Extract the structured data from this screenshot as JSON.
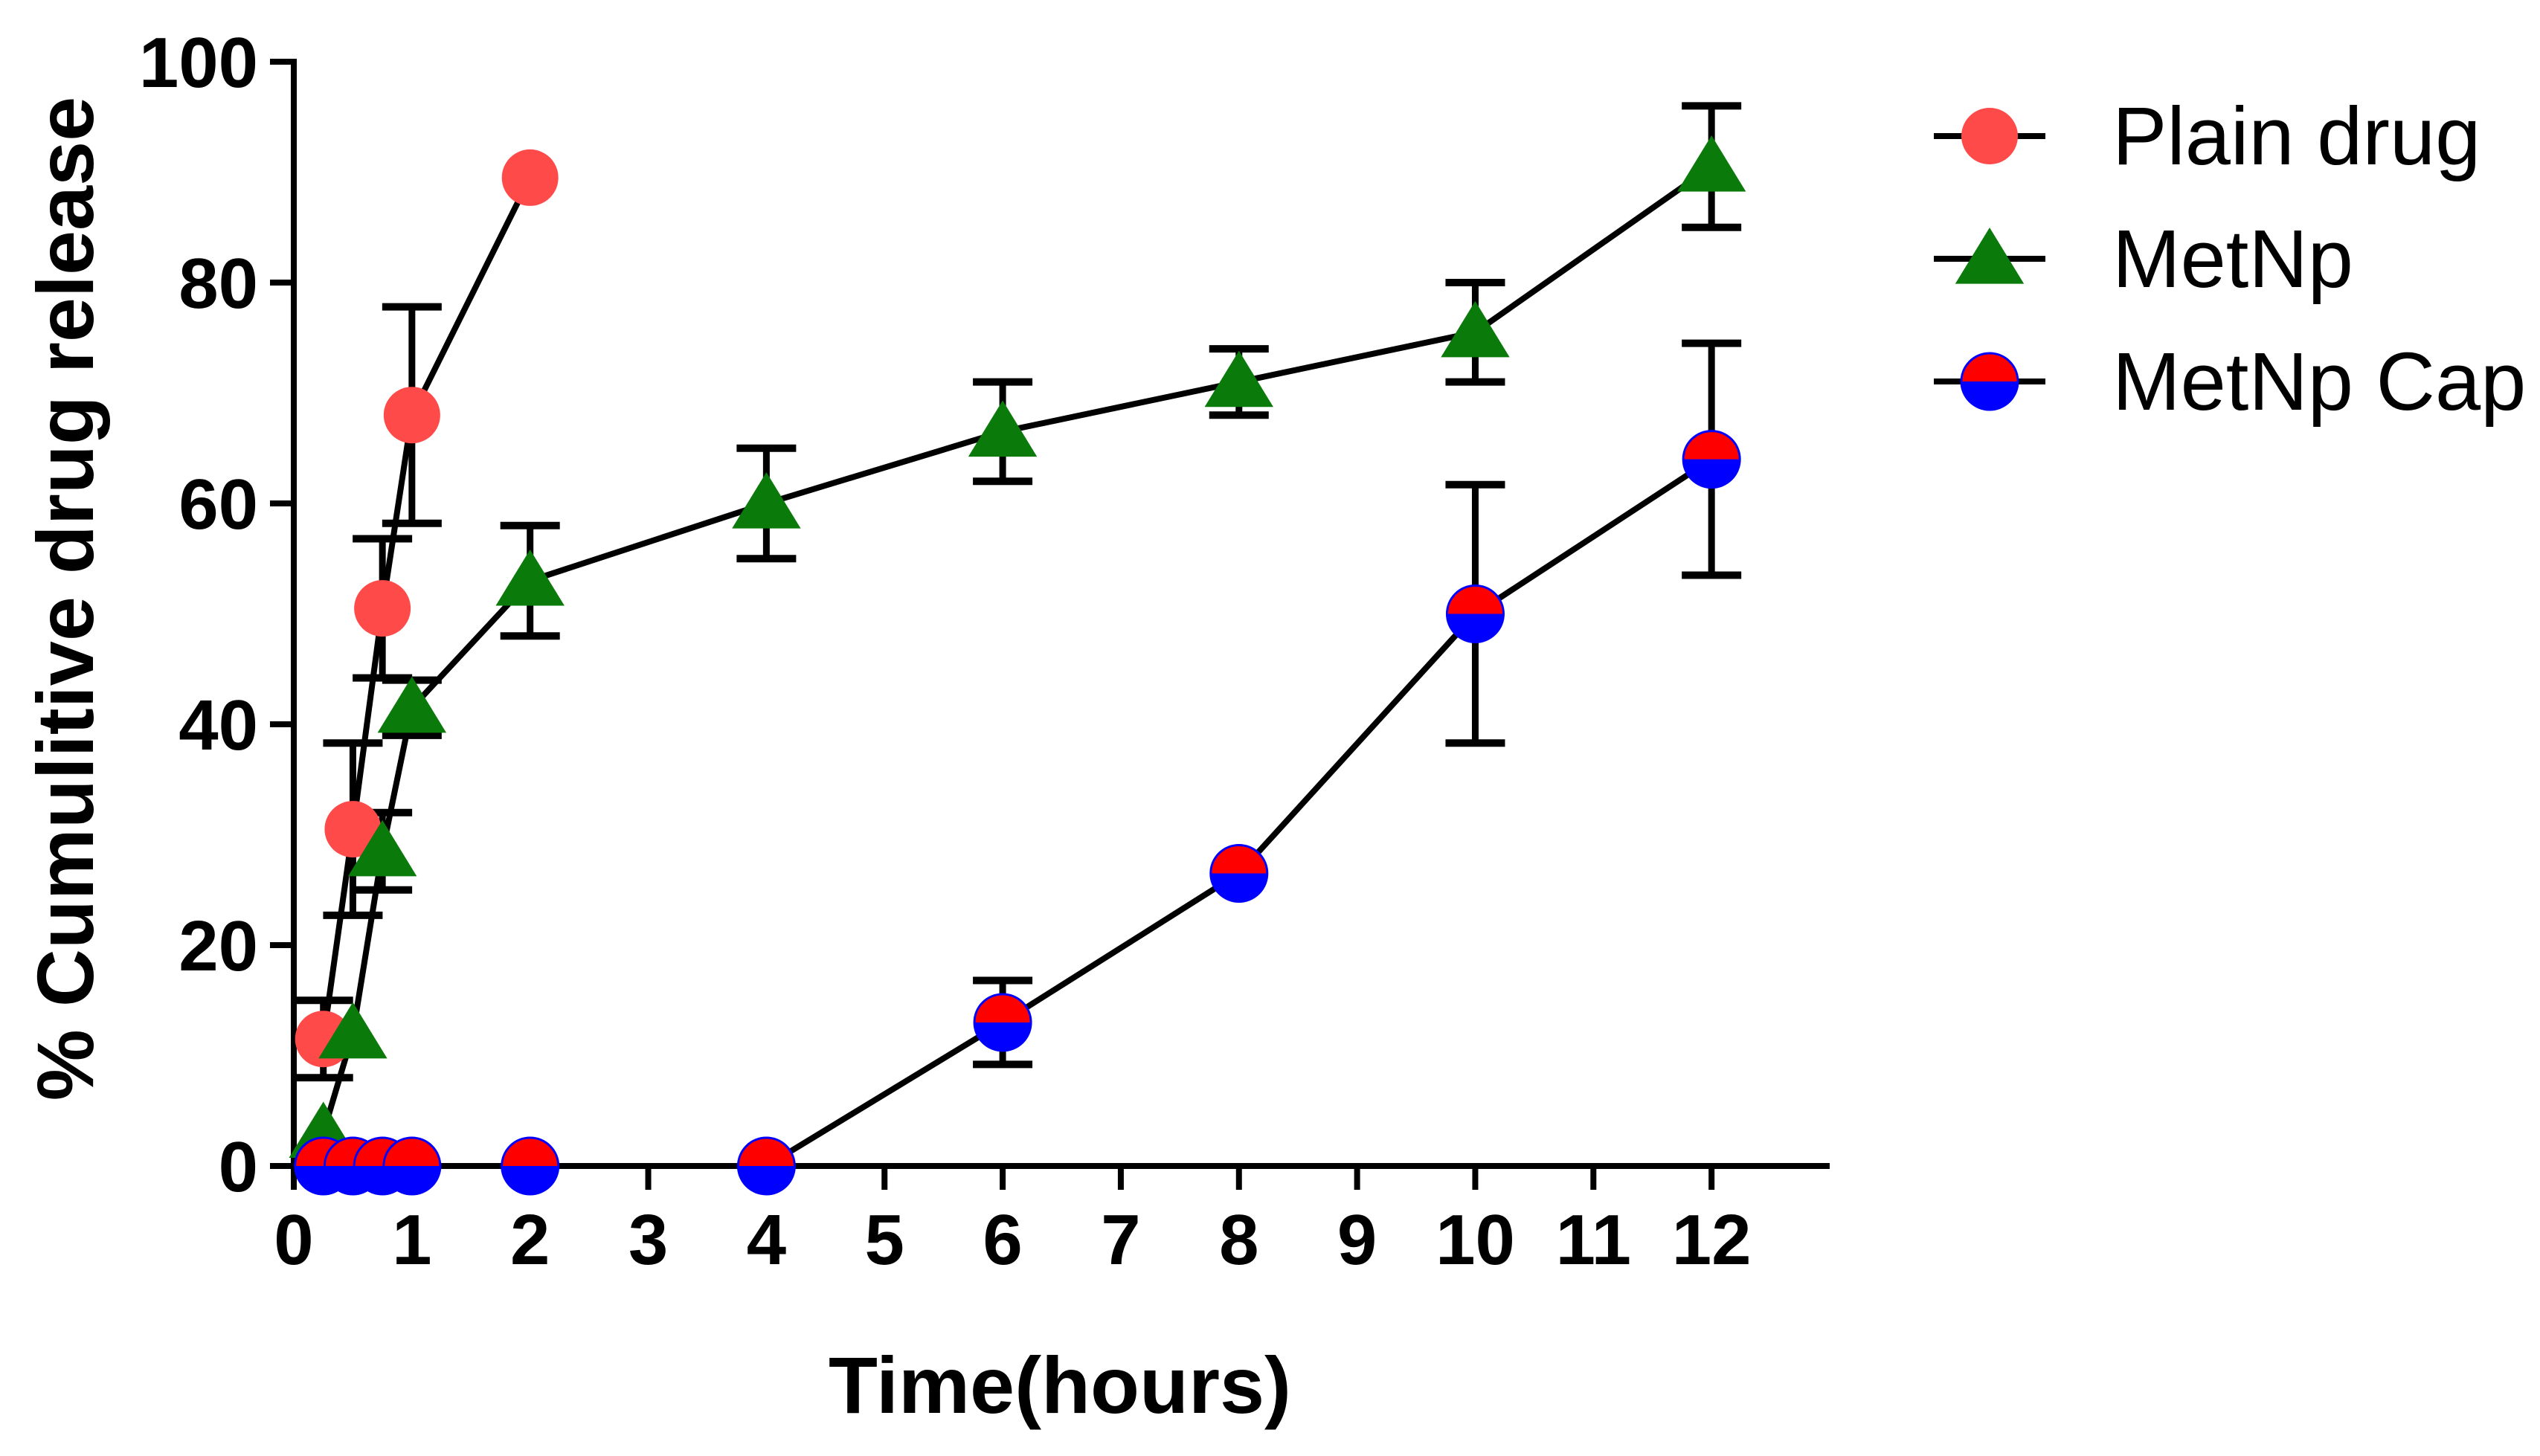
{
  "chart_data": {
    "type": "line",
    "title": "",
    "xlabel": "Time(hours)",
    "ylabel": "% Cumulitive drug release",
    "xlim": [
      0,
      13
    ],
    "ylim": [
      0,
      100
    ],
    "x_ticks": [
      0,
      1,
      2,
      3,
      4,
      5,
      6,
      7,
      8,
      9,
      10,
      11,
      12
    ],
    "y_ticks": [
      0,
      20,
      40,
      60,
      80,
      100
    ],
    "legend_position": "top-right",
    "grid": false,
    "series": [
      {
        "name": "Plain drug",
        "marker": "circle",
        "color": "#ff4a4a",
        "x": [
          0.25,
          0.5,
          0.75,
          1,
          2
        ],
        "y": [
          11.5,
          30.5,
          50.5,
          68,
          89.5
        ],
        "err": [
          3.5,
          7.8,
          6.3,
          9.8,
          0
        ]
      },
      {
        "name": "MetNp",
        "marker": "triangle",
        "color": "#0a7a0a",
        "x": [
          0.25,
          0.5,
          0.75,
          1,
          2,
          4,
          6,
          8,
          10,
          12
        ],
        "y": [
          3,
          12,
          28.5,
          41.5,
          53,
          60,
          66.5,
          71,
          75.5,
          90.5
        ],
        "err": [
          0,
          0,
          3.5,
          2.5,
          5,
          5,
          4.5,
          3,
          4.5,
          5.5
        ]
      },
      {
        "name": "MetNp Cap",
        "marker": "half-circle",
        "color": "#0000ff",
        "color_top": "#ff0000",
        "x": [
          0.25,
          0.5,
          0.75,
          1,
          2,
          4,
          6,
          8,
          10,
          12
        ],
        "y": [
          0,
          0,
          0,
          0,
          0,
          0,
          13,
          26.5,
          50,
          64
        ],
        "err": [
          0,
          0,
          0,
          0,
          0,
          0,
          3.8,
          0,
          11.7,
          10.5
        ]
      }
    ]
  }
}
